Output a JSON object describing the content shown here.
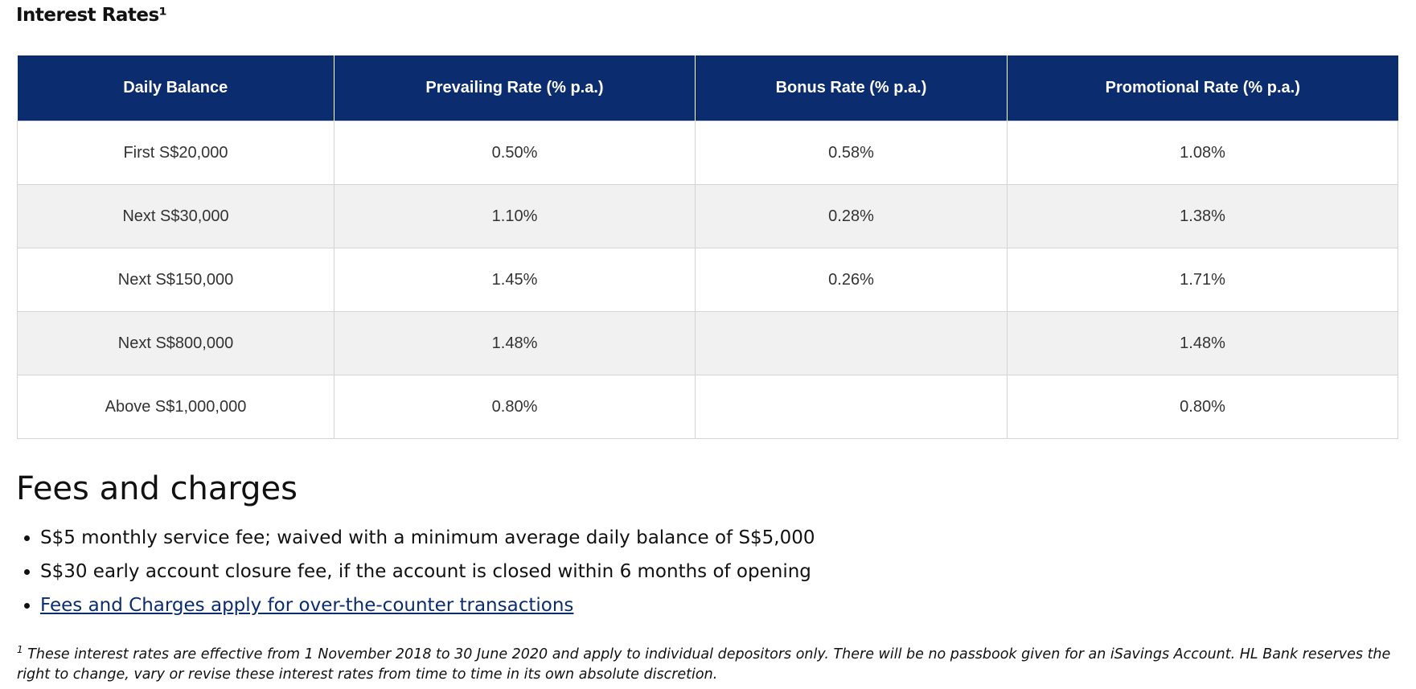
{
  "header": {
    "title": "Interest Rates¹"
  },
  "table": {
    "columns": [
      "Daily Balance",
      "Prevailing Rate (% p.a.)",
      "Bonus Rate (% p.a.)",
      "Promotional Rate (% p.a.)"
    ],
    "rows": [
      [
        "First S$20,000",
        "0.50%",
        "0.58%",
        "1.08%"
      ],
      [
        "Next S$30,000",
        "1.10%",
        "0.28%",
        "1.38%"
      ],
      [
        "Next S$150,000",
        "1.45%",
        "0.26%",
        "1.71%"
      ],
      [
        "Next S$800,000",
        "1.48%",
        null,
        "1.48%"
      ],
      [
        "Above S$1,000,000",
        "0.80%",
        null,
        "0.80%"
      ]
    ]
  },
  "fees": {
    "title": "Fees and charges",
    "items": [
      "S$5 monthly service fee; waived with a minimum average daily balance of S$5,000",
      "S$30 early account closure fee, if the account is closed within 6 months of opening",
      "Fees and Charges apply for over-the-counter transactions"
    ]
  },
  "footnote": {
    "marker": "1",
    "text": " These interest rates are effective from 1 November 2018 to 30 June 2020 and apply to individual depositors only. There will be no passbook given for an iSavings Account. HL Bank reserves the right to change, vary or revise these interest rates from time to time in its own absolute discretion."
  }
}
